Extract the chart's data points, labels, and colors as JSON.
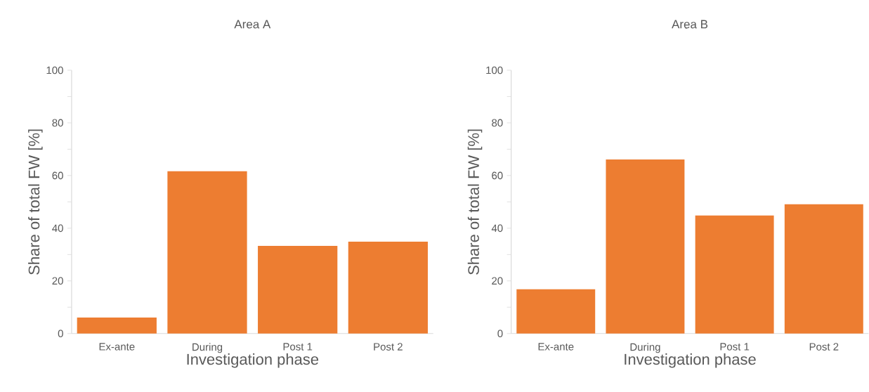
{
  "chart_data": [
    {
      "type": "bar",
      "title": "Area A",
      "xlabel": "Investigation phase",
      "ylabel": "Share of total FW [%]",
      "categories": [
        "Ex-ante",
        "During",
        "Post 1",
        "Post 2"
      ],
      "values": [
        6.1,
        61.6,
        33.3,
        34.9
      ],
      "color": "#ed7d31",
      "ylim": [
        0,
        100
      ],
      "yticks": [
        0,
        {
          "value": 10,
          "label": null
        },
        20,
        {
          "value": 30,
          "label": null
        },
        40,
        {
          "value": 50,
          "label": null
        },
        60,
        {
          "value": 70,
          "label": null
        },
        80,
        {
          "value": 90,
          "label": null
        },
        100
      ]
    },
    {
      "type": "bar",
      "title": "Area B",
      "xlabel": "Investigation phase",
      "ylabel": "Share of total FW [%]",
      "categories": [
        "Ex-ante",
        "During",
        "Post 1",
        "Post 2"
      ],
      "values": [
        16.8,
        66.1,
        44.8,
        49.1
      ],
      "color": "#ed7d31",
      "ylim": [
        0,
        100
      ],
      "yticks": [
        0,
        {
          "value": 10,
          "label": null
        },
        20,
        {
          "value": 30,
          "label": null
        },
        40,
        {
          "value": 50,
          "label": null
        },
        60,
        {
          "value": 70,
          "label": null
        },
        80,
        {
          "value": 90,
          "label": null
        },
        100
      ]
    }
  ]
}
